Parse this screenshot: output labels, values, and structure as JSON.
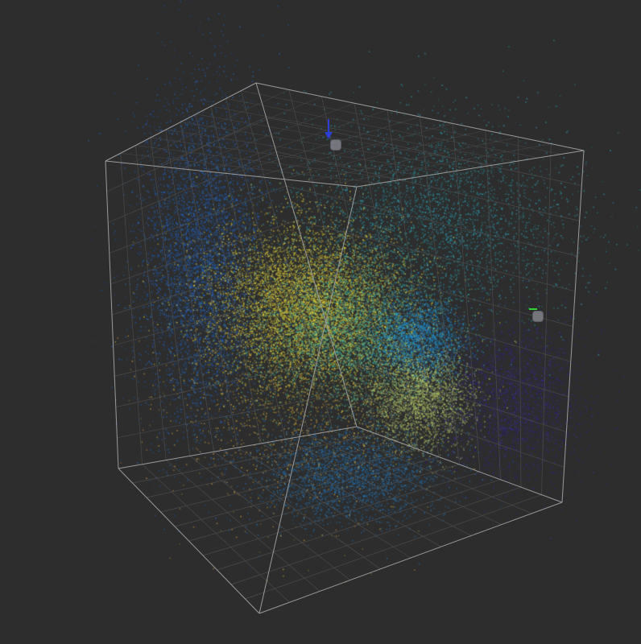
{
  "chart_data": {
    "type": "scatter",
    "dimensions": 3,
    "title": "",
    "grid": true,
    "legend": "none",
    "axis_ranges": {
      "x": [
        0,
        1
      ],
      "y": [
        0,
        1
      ],
      "z": [
        0,
        1
      ]
    },
    "colormap": [
      "#3b2a8c",
      "#2166c7",
      "#1f9fc8",
      "#3bb89a",
      "#a6c46a",
      "#f0dc2c",
      "#d9a838"
    ],
    "clusters": [
      {
        "name_hint": "blue-left",
        "center": [
          0.18,
          0.62,
          0.55
        ],
        "spread": [
          0.07,
          0.2,
          0.12
        ],
        "count": 5200,
        "color": "#2166c7"
      },
      {
        "name_hint": "yellow-center",
        "center": [
          0.42,
          0.52,
          0.55
        ],
        "spread": [
          0.1,
          0.09,
          0.1
        ],
        "count": 7600,
        "color": "#e6d43a"
      },
      {
        "name_hint": "green-center",
        "center": [
          0.5,
          0.45,
          0.5
        ],
        "spread": [
          0.1,
          0.08,
          0.1
        ],
        "count": 3800,
        "color": "#45b69a"
      },
      {
        "name_hint": "cyan-upper-right",
        "center": [
          0.68,
          0.72,
          0.45
        ],
        "spread": [
          0.16,
          0.12,
          0.18
        ],
        "count": 3400,
        "color": "#2aa3b8"
      },
      {
        "name_hint": "bright-blue",
        "center": [
          0.66,
          0.44,
          0.5
        ],
        "spread": [
          0.05,
          0.05,
          0.05
        ],
        "count": 2200,
        "color": "#1e8fd8"
      },
      {
        "name_hint": "lime-lower-right",
        "center": [
          0.66,
          0.3,
          0.52
        ],
        "spread": [
          0.06,
          0.06,
          0.06
        ],
        "count": 2800,
        "color": "#b5c96a"
      },
      {
        "name_hint": "purple-right",
        "center": [
          0.86,
          0.3,
          0.55
        ],
        "spread": [
          0.08,
          0.1,
          0.12
        ],
        "count": 2400,
        "color": "#34288f"
      },
      {
        "name_hint": "blue-bottom",
        "center": [
          0.5,
          0.12,
          0.45
        ],
        "spread": [
          0.1,
          0.06,
          0.1
        ],
        "count": 2600,
        "color": "#2378bf"
      },
      {
        "name_hint": "orange-sparse",
        "center": [
          0.38,
          0.3,
          0.5
        ],
        "spread": [
          0.14,
          0.14,
          0.14
        ],
        "count": 1400,
        "color": "#d9a838"
      }
    ]
  },
  "cube": {
    "edge_color": "#9a9a9a",
    "grid_color": "#4a4a4a"
  },
  "handles": {
    "top": {
      "icon": "z-axis-arrow-icon",
      "color": "#2b3fd6"
    },
    "right": {
      "icon": "y-axis-arrow-icon",
      "color": "#2fd62f"
    }
  }
}
